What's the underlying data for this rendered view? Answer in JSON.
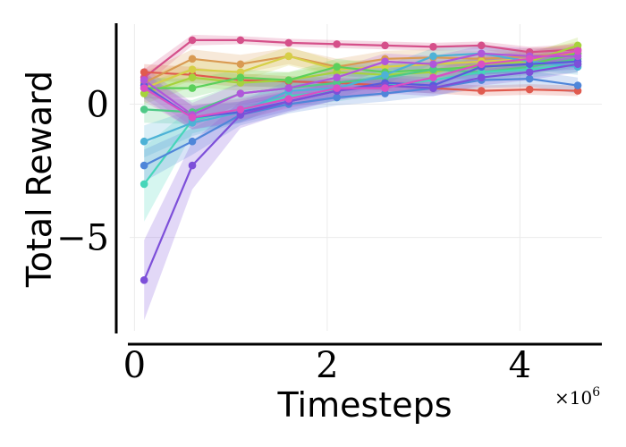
{
  "chart_data": {
    "type": "line",
    "xlabel": "Timesteps",
    "ylabel": "Total Reward",
    "x_multiplier_label": "×10",
    "x_multiplier_exp": "6",
    "xlim": [
      -0.05,
      4.85
    ],
    "ylim": [
      -8.5,
      3.0
    ],
    "x_ticks": [
      {
        "v": 0,
        "label": "0"
      },
      {
        "v": 2,
        "label": "2"
      },
      {
        "v": 4,
        "label": "4"
      }
    ],
    "y_ticks": [
      {
        "v": 0,
        "label": "0"
      },
      {
        "v": -5,
        "label": "−5"
      }
    ],
    "grid": true,
    "x": [
      0.1,
      0.6,
      1.1,
      1.6,
      2.1,
      2.6,
      3.1,
      3.6,
      4.1,
      4.6
    ],
    "series": [
      {
        "color": "#d5508a",
        "values": [
          1.0,
          2.4,
          2.4,
          2.3,
          2.25,
          2.2,
          2.15,
          2.2,
          1.95,
          2.05
        ],
        "band": [
          0.3,
          0.2,
          0.15,
          0.15,
          0.15,
          0.15,
          0.15,
          0.15,
          0.2,
          0.2
        ]
      },
      {
        "color": "#e05a4e",
        "values": [
          1.2,
          1.1,
          0.9,
          0.85,
          0.8,
          0.7,
          0.6,
          0.5,
          0.55,
          0.5
        ],
        "band": [
          0.3,
          0.3,
          0.25,
          0.2,
          0.2,
          0.2,
          0.2,
          0.2,
          0.2,
          0.2
        ]
      },
      {
        "color": "#d99a52",
        "values": [
          0.8,
          1.7,
          1.5,
          1.8,
          1.4,
          1.7,
          1.75,
          1.7,
          1.8,
          1.9
        ],
        "band": [
          0.4,
          0.35,
          0.35,
          0.3,
          0.3,
          0.3,
          0.3,
          0.3,
          0.3,
          0.3
        ]
      },
      {
        "color": "#d6cf46",
        "values": [
          0.6,
          1.3,
          1.2,
          1.8,
          1.3,
          1.4,
          1.5,
          1.6,
          1.7,
          2.0
        ],
        "band": [
          0.4,
          0.4,
          0.35,
          0.35,
          0.3,
          0.3,
          0.3,
          0.3,
          0.3,
          0.35
        ]
      },
      {
        "color": "#a6d33c",
        "values": [
          0.4,
          1.0,
          0.8,
          0.9,
          1.2,
          1.1,
          1.2,
          1.5,
          1.6,
          2.2
        ],
        "band": [
          0.4,
          0.35,
          0.3,
          0.3,
          0.3,
          0.3,
          0.3,
          0.3,
          0.3,
          0.3
        ]
      },
      {
        "color": "#5bd05b",
        "values": [
          0.6,
          0.6,
          1.0,
          0.9,
          1.4,
          1.2,
          1.3,
          1.4,
          1.5,
          1.9
        ],
        "band": [
          0.4,
          0.35,
          0.3,
          0.3,
          0.3,
          0.3,
          0.3,
          0.3,
          0.3,
          0.3
        ]
      },
      {
        "color": "#4fc986",
        "values": [
          -0.2,
          -0.3,
          0.4,
          0.6,
          0.8,
          1.0,
          1.3,
          1.2,
          1.4,
          1.7
        ],
        "band": [
          0.5,
          0.45,
          0.4,
          0.35,
          0.35,
          0.3,
          0.3,
          0.3,
          0.3,
          0.3
        ]
      },
      {
        "color": "#45d6b9",
        "values": [
          -3.0,
          -0.6,
          -0.2,
          0.3,
          0.5,
          0.7,
          0.9,
          1.2,
          1.3,
          1.5
        ],
        "band": [
          1.4,
          0.5,
          0.45,
          0.4,
          0.4,
          0.35,
          0.35,
          0.3,
          0.3,
          0.3
        ]
      },
      {
        "color": "#4db2d6",
        "values": [
          -1.4,
          -0.7,
          -0.3,
          0.5,
          0.6,
          1.1,
          1.8,
          1.9,
          1.6,
          1.4
        ],
        "band": [
          0.6,
          0.5,
          0.4,
          0.4,
          0.35,
          0.35,
          0.3,
          0.3,
          0.3,
          0.3
        ]
      },
      {
        "color": "#4f86d9",
        "values": [
          -2.3,
          -1.4,
          -0.4,
          0.0,
          0.25,
          0.4,
          0.6,
          0.9,
          0.95,
          0.7
        ],
        "band": [
          0.6,
          0.5,
          0.4,
          0.35,
          0.3,
          0.3,
          0.3,
          0.3,
          0.3,
          0.3
        ]
      },
      {
        "color": "#5b5bdc",
        "values": [
          0.7,
          -0.5,
          -0.3,
          0.1,
          0.5,
          0.8,
          0.7,
          1.4,
          1.5,
          1.6
        ],
        "band": [
          0.5,
          0.45,
          0.4,
          0.35,
          0.35,
          0.3,
          0.3,
          0.3,
          0.3,
          0.3
        ]
      },
      {
        "color": "#7d4fd9",
        "values": [
          -6.6,
          -2.3,
          -0.4,
          0.1,
          0.5,
          0.7,
          0.6,
          1.0,
          1.2,
          1.5
        ],
        "band": [
          1.5,
          0.9,
          0.5,
          0.4,
          0.35,
          0.3,
          0.3,
          0.3,
          0.3,
          0.3
        ]
      },
      {
        "color": "#b056db",
        "values": [
          0.9,
          -0.4,
          0.4,
          0.6,
          1.0,
          1.6,
          1.5,
          1.9,
          1.8,
          1.8
        ],
        "band": [
          0.5,
          0.45,
          0.4,
          0.35,
          0.35,
          0.3,
          0.3,
          0.3,
          0.3,
          0.3
        ]
      },
      {
        "color": "#da4fc4",
        "values": [
          0.6,
          -0.5,
          -0.2,
          0.2,
          0.6,
          0.6,
          1.0,
          1.5,
          1.7,
          2.0
        ],
        "band": [
          0.5,
          0.45,
          0.4,
          0.35,
          0.35,
          0.3,
          0.3,
          0.3,
          0.3,
          0.3
        ]
      }
    ]
  }
}
